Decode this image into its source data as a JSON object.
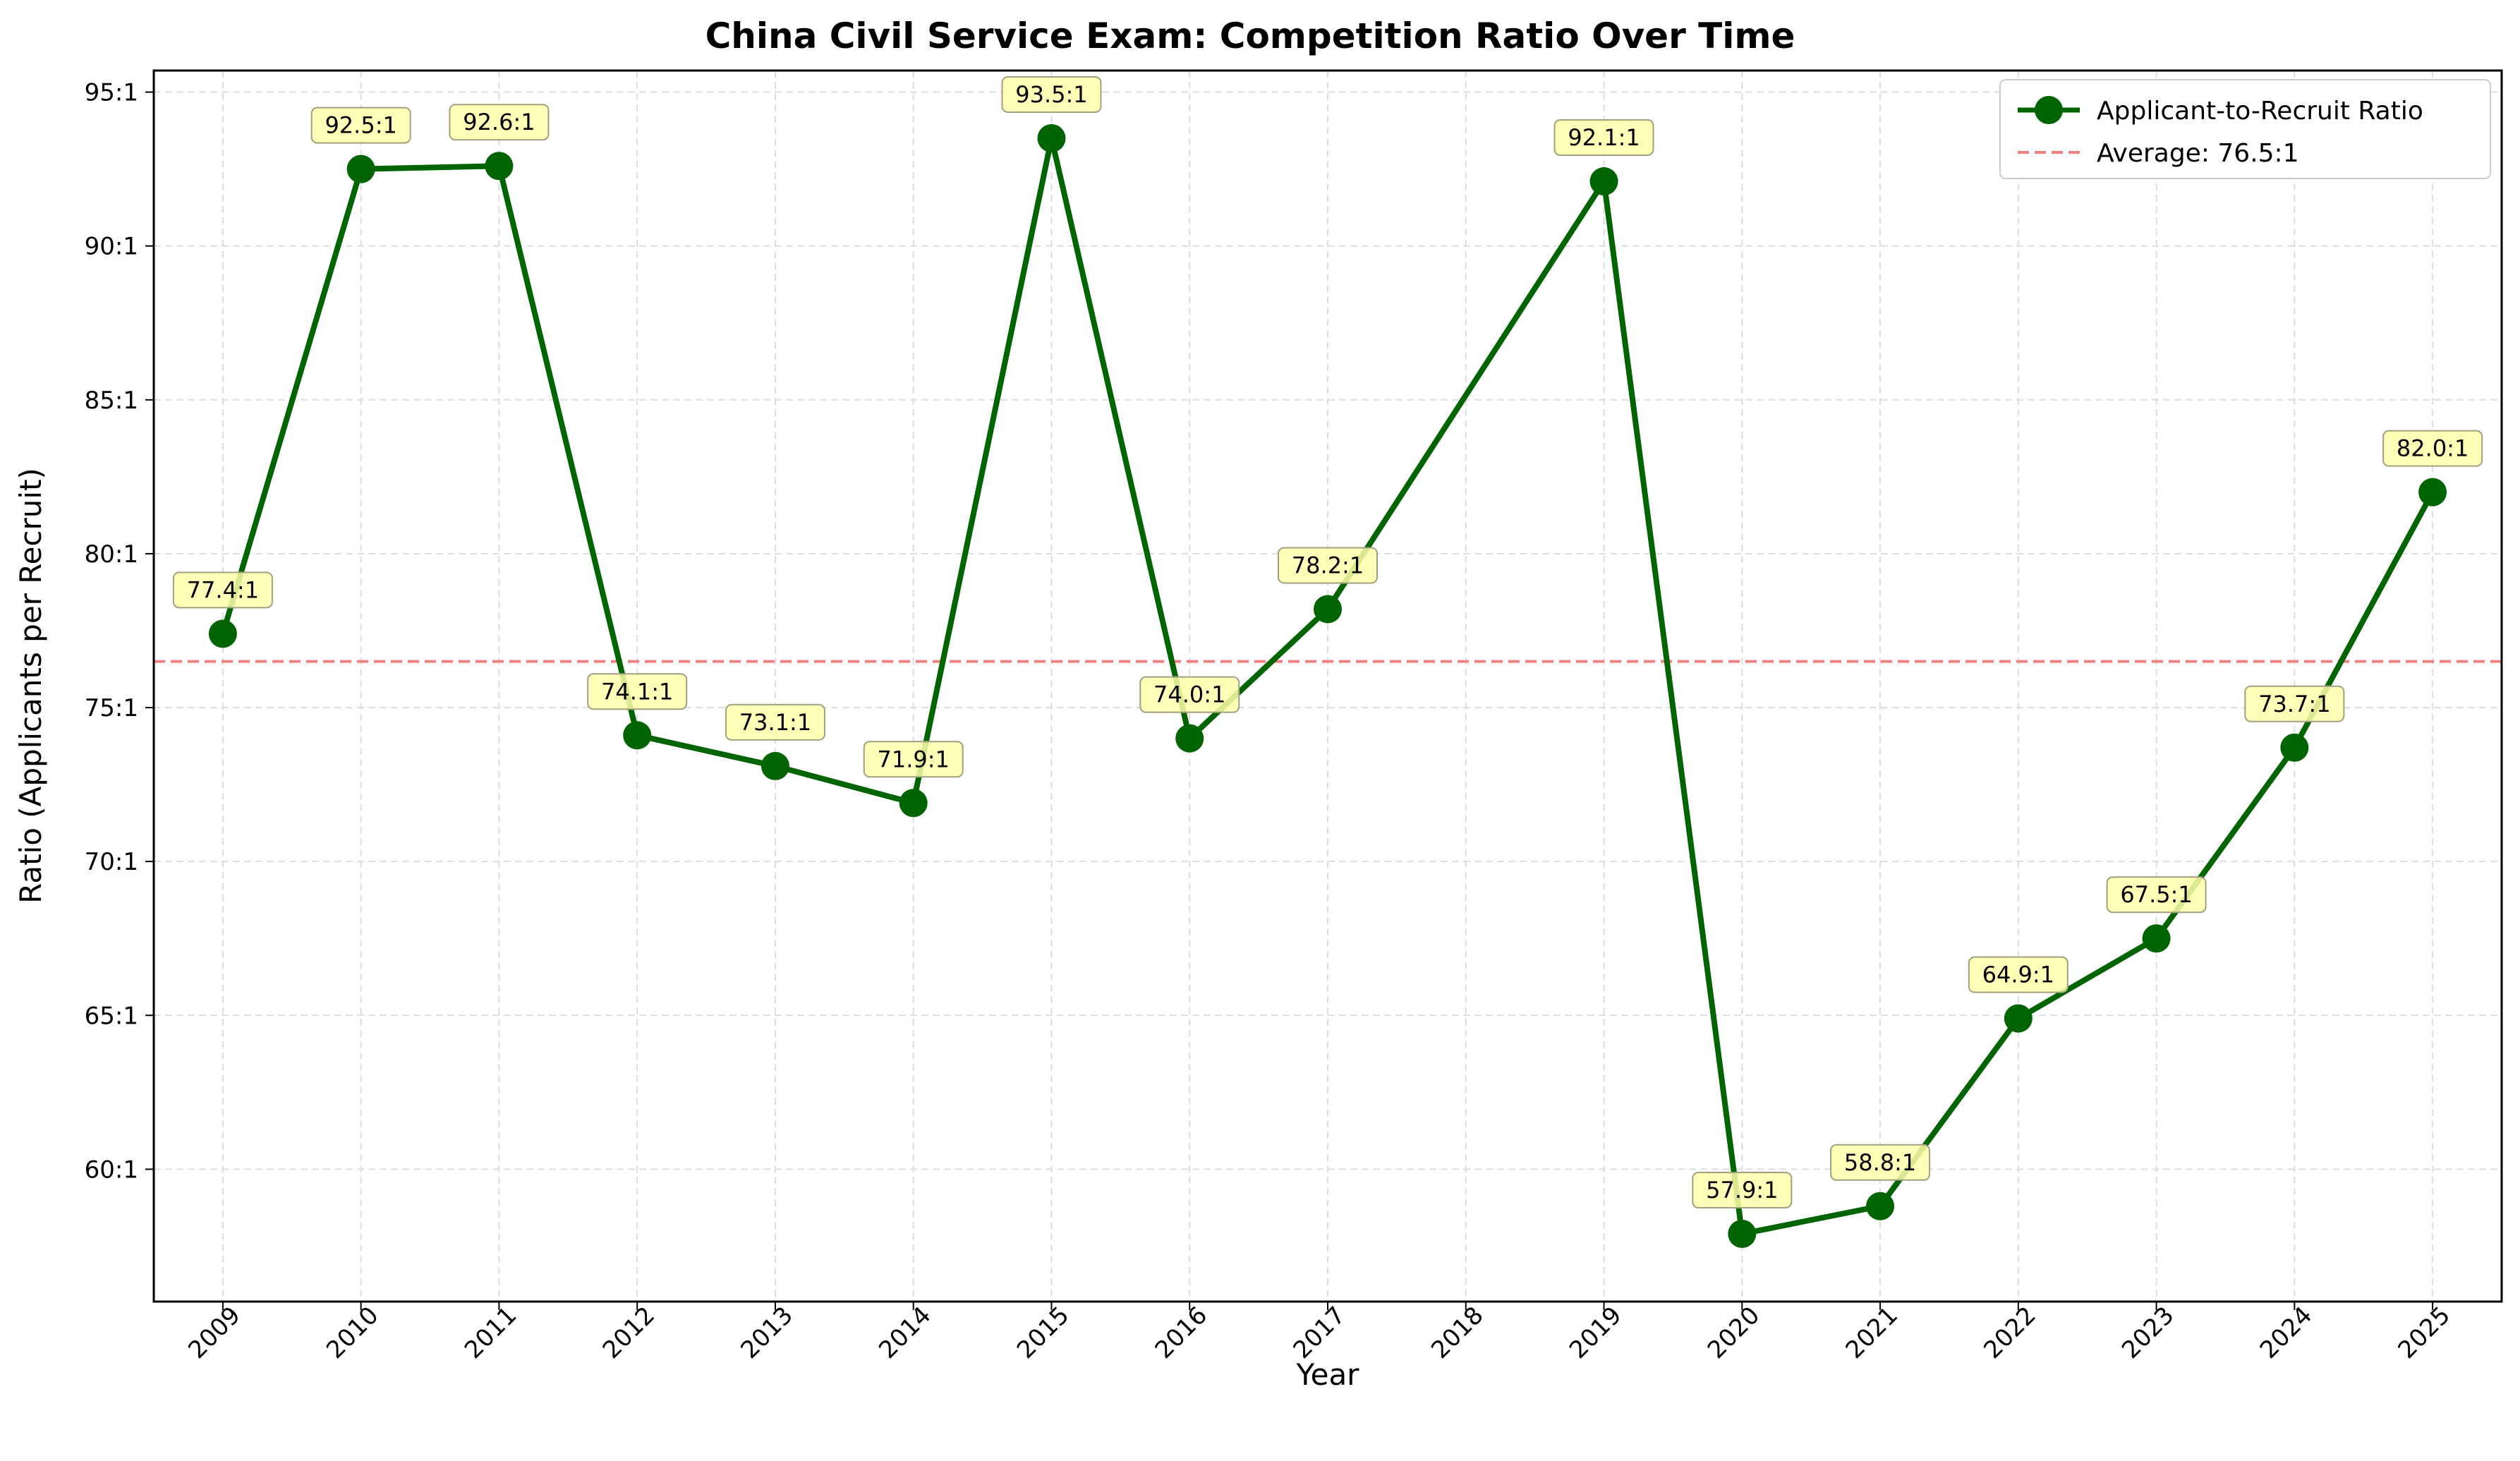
{
  "chart_data": {
    "type": "line",
    "title": "China Civil Service Exam: Competition Ratio Over Time",
    "xlabel": "Year",
    "ylabel": "Ratio (Applicants per Recruit)",
    "x": [
      2009,
      2010,
      2011,
      2012,
      2013,
      2014,
      2015,
      2016,
      2017,
      2019,
      2020,
      2021,
      2022,
      2023,
      2024,
      2025
    ],
    "x_ticks": [
      "2009",
      "2010",
      "2011",
      "2012",
      "2013",
      "2014",
      "2015",
      "2016",
      "2017",
      "2018",
      "2019",
      "2020",
      "2021",
      "2022",
      "2023",
      "2024",
      "2025"
    ],
    "series": [
      {
        "name": "Applicant-to-Recruit Ratio",
        "color": "#006400",
        "values": [
          77.4,
          92.5,
          92.6,
          74.1,
          73.1,
          71.9,
          93.5,
          74.0,
          78.2,
          92.1,
          57.9,
          58.8,
          64.9,
          67.5,
          73.7,
          82.0
        ],
        "labels": [
          "77.4:1",
          "92.5:1",
          "92.6:1",
          "74.1:1",
          "73.1:1",
          "71.9:1",
          "93.5:1",
          "74.0:1",
          "78.2:1",
          "92.1:1",
          "57.9:1",
          "58.8:1",
          "64.9:1",
          "67.5:1",
          "73.7:1",
          "82.0:1"
        ]
      }
    ],
    "reference_line": {
      "name": "Average: 76.5:1",
      "value": 76.5,
      "color": "#f08080"
    },
    "y_ticks": [
      60,
      65,
      70,
      75,
      80,
      85,
      90,
      95
    ],
    "y_tick_labels": [
      "60:1",
      "65:1",
      "70:1",
      "75:1",
      "80:1",
      "85:1",
      "90:1",
      "95:1"
    ],
    "xlim": [
      2008.5,
      2025.5
    ],
    "ylim": [
      55.7,
      95.7
    ],
    "grid": true,
    "legend_position": "top-right",
    "label_box_color": "#ffffaa"
  }
}
